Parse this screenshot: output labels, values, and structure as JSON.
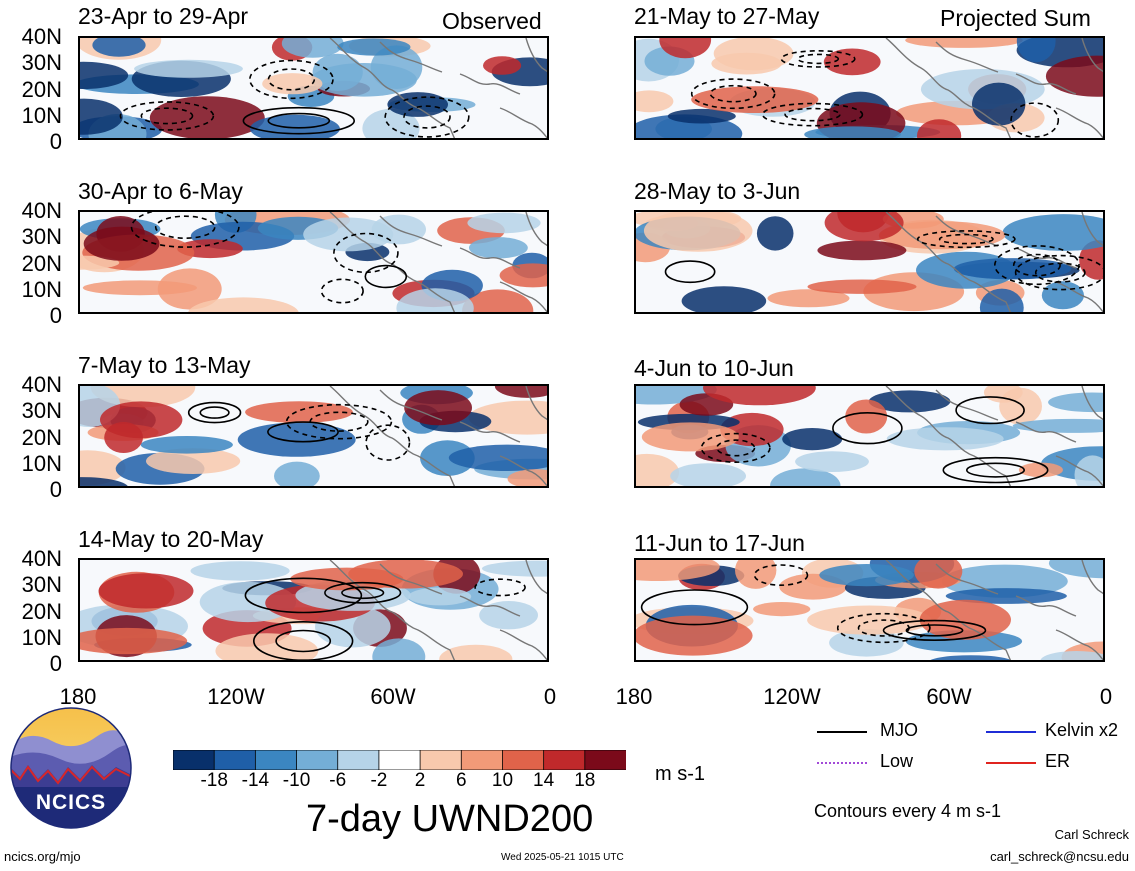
{
  "header": {
    "left_label": "Observed",
    "right_label": "Projected Sum"
  },
  "panels": [
    {
      "title": "23-Apr to 29-Apr",
      "kind": "observed"
    },
    {
      "title": "30-Apr to 6-May",
      "kind": "observed"
    },
    {
      "title": "7-May to 13-May",
      "kind": "observed"
    },
    {
      "title": "14-May to 20-May",
      "kind": "observed"
    },
    {
      "title": "21-May to 27-May",
      "kind": "projected"
    },
    {
      "title": "28-May to 3-Jun",
      "kind": "projected"
    },
    {
      "title": "4-Jun to 10-Jun",
      "kind": "projected"
    },
    {
      "title": "11-Jun to 17-Jun",
      "kind": "projected"
    }
  ],
  "lat_labels": [
    "40N",
    "30N",
    "20N",
    "10N",
    "0"
  ],
  "lon_labels": [
    "180",
    "120W",
    "60W",
    "0"
  ],
  "colorbar": {
    "ticks": [
      "-18",
      "-14",
      "-10",
      "-6",
      "-2",
      "2",
      "6",
      "10",
      "14",
      "18"
    ],
    "colors": [
      "#08306b",
      "#1f5fa8",
      "#3b86c1",
      "#74aed6",
      "#b6d4e8",
      "#ffffff",
      "#f8c9ad",
      "#f29a78",
      "#e0634a",
      "#c0292b",
      "#7b0a1a"
    ],
    "units": "m s-1"
  },
  "legend": {
    "items": [
      {
        "label": "MJO",
        "color": "#000000"
      },
      {
        "label": "Kelvin x2",
        "color": "#1f2dd6"
      },
      {
        "label": "Low",
        "color": "#a24ad8"
      },
      {
        "label": "ER",
        "color": "#e0241f"
      }
    ],
    "contour_note": "Contours every 4 m s-1"
  },
  "main_title": "7-day UWND200",
  "logo": {
    "text": "NCICS"
  },
  "footer": {
    "url": "ncics.org/mjo",
    "timestamp": "Wed 2025-05-21 1015 UTC",
    "author": "Carl Schreck",
    "email": "carl_schreck@ncsu.edu"
  }
}
